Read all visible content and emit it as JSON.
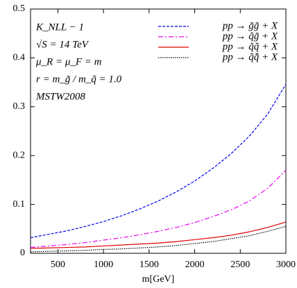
{
  "chart_data": {
    "type": "line",
    "x_label": "m[GeV]",
    "annotations": [
      "K_NLL − 1",
      "√S = 14 TeV",
      "μ_R = μ_F = m",
      "r = m_g̃ / m_q̃ = 1.0",
      "MSTW2008"
    ],
    "x": [
      200,
      400,
      600,
      800,
      1000,
      1200,
      1400,
      1600,
      1800,
      2000,
      2200,
      2400,
      2600,
      2800,
      3000
    ],
    "series": [
      {
        "name": "pp → g̃g̃ + X",
        "color": "#0000ee",
        "style": "dashed",
        "values": [
          0.032,
          0.039,
          0.046,
          0.055,
          0.065,
          0.077,
          0.091,
          0.107,
          0.126,
          0.148,
          0.174,
          0.204,
          0.24,
          0.285,
          0.346
        ]
      },
      {
        "name": "pp → q̃g̃ + X",
        "color": "#ee00ee",
        "style": "dashdot",
        "values": [
          0.012,
          0.015,
          0.018,
          0.022,
          0.027,
          0.032,
          0.038,
          0.045,
          0.053,
          0.063,
          0.075,
          0.089,
          0.107,
          0.133,
          0.17
        ]
      },
      {
        "name": "pp → q̃q̃ + X",
        "color": "#dd0000",
        "style": "solid",
        "values": [
          0.01,
          0.011,
          0.012,
          0.013,
          0.015,
          0.017,
          0.019,
          0.021,
          0.024,
          0.028,
          0.032,
          0.037,
          0.044,
          0.053,
          0.064
        ]
      },
      {
        "name": "pp → q̃q̄̃ + X",
        "color": "#000000",
        "style": "dotted",
        "values": [
          0.003,
          0.004,
          0.005,
          0.006,
          0.008,
          0.009,
          0.011,
          0.013,
          0.016,
          0.02,
          0.024,
          0.03,
          0.036,
          0.045,
          0.055
        ]
      }
    ],
    "xlim": [
      200,
      3000
    ],
    "xticks": [
      500,
      1000,
      1500,
      2000,
      2500,
      3000
    ],
    "ylim": [
      0,
      0.5
    ],
    "yticks": [
      0,
      0.1,
      0.2,
      0.3,
      0.4,
      0.5
    ],
    "legend": "upper right"
  }
}
